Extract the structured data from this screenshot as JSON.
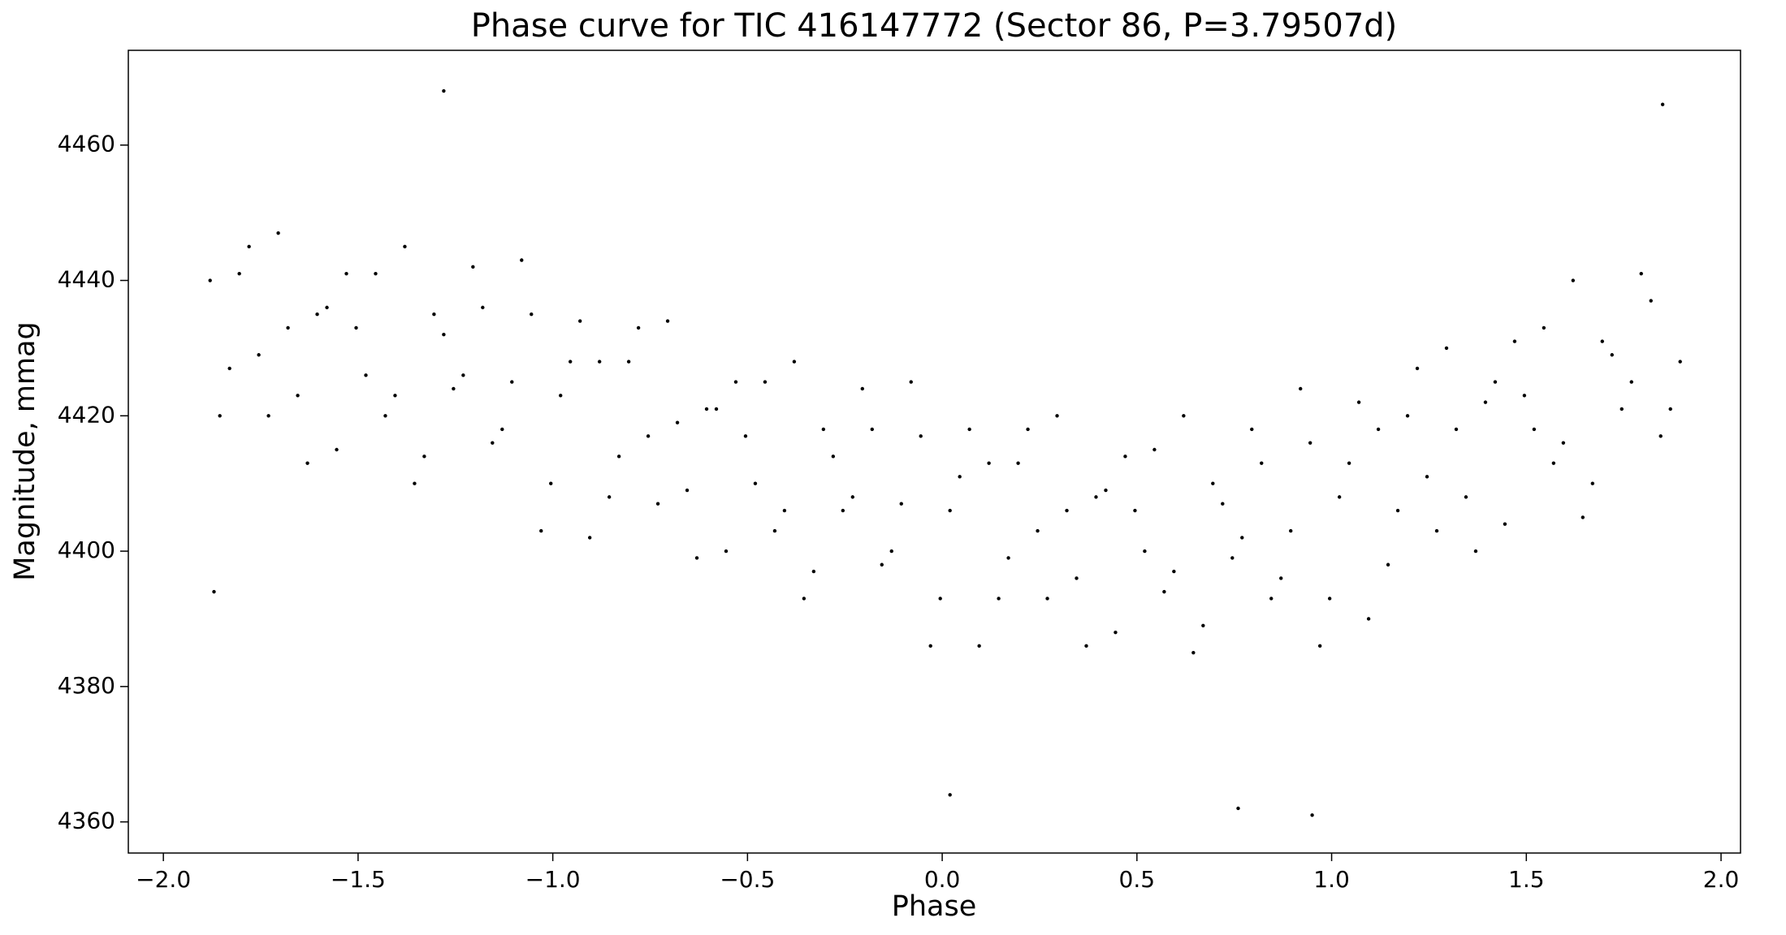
{
  "chart_data": {
    "type": "scatter",
    "title": "Phase curve for TIC 416147772 (Sector 86, P=3.79507d)",
    "xlabel": "Phase",
    "ylabel": "Magnitude, mmag",
    "color": "#000000",
    "xlim": [
      -2.09,
      2.05
    ],
    "ylim": [
      4355.4,
      4474.0
    ],
    "xticks": [
      {
        "value": -2.0,
        "label": "−2.0"
      },
      {
        "value": -1.5,
        "label": "−1.5"
      },
      {
        "value": -1.0,
        "label": "−1.0"
      },
      {
        "value": -0.5,
        "label": "−0.5"
      },
      {
        "value": 0,
        "label": "0.0"
      },
      0.5,
      {
        "value": 1,
        "label": "1.0"
      },
      1.5,
      {
        "value": 2,
        "label": "2.0"
      }
    ],
    "yticks": [
      4360,
      4380,
      4400,
      4420,
      4440,
      4460
    ],
    "x": [
      -1.88,
      -1.83,
      -1.78,
      -1.73,
      -1.68,
      -1.63,
      -1.58,
      -1.53,
      -1.48,
      -1.43,
      -1.38,
      -1.33,
      -1.28,
      -1.23,
      -1.18,
      -1.13,
      -1.08,
      -1.03,
      -0.98,
      -0.93,
      -0.88,
      -0.83,
      -0.78,
      -0.73,
      -0.68,
      -0.63,
      -0.58,
      -0.53,
      -0.48,
      -0.43,
      -0.38,
      -0.33,
      -0.28,
      -0.23,
      -0.18,
      -0.13,
      -0.08,
      -0.03,
      0.02,
      0.07,
      0.12,
      0.17,
      0.22,
      0.27,
      0.32,
      0.37,
      0.42,
      0.47,
      0.52,
      0.57,
      0.62,
      0.67,
      0.72,
      0.77,
      0.82,
      0.87,
      0.92,
      0.97,
      1.02,
      1.07,
      1.12,
      1.17,
      1.22,
      1.27,
      1.32,
      1.37,
      1.42,
      1.47,
      1.52,
      1.57,
      1.62,
      1.67,
      1.72,
      1.77,
      1.82,
      1.87,
      -1.855,
      -1.805,
      -1.755,
      -1.705,
      -1.655,
      -1.605,
      -1.555,
      -1.505,
      -1.455,
      -1.405,
      -1.355,
      -1.305,
      -1.255,
      -1.205,
      -1.155,
      -1.105,
      -1.055,
      -1.005,
      -0.955,
      -0.905,
      -0.855,
      -0.805,
      -0.755,
      -0.705,
      -0.655,
      -0.605,
      -0.555,
      -0.505,
      -0.455,
      -0.405,
      -0.355,
      -0.305,
      -0.255,
      -0.205,
      -0.155,
      -0.105,
      -0.055,
      -0.005,
      0.045,
      0.095,
      0.145,
      0.195,
      0.245,
      0.295,
      0.345,
      0.395,
      0.445,
      0.495,
      0.545,
      0.595,
      0.645,
      0.695,
      0.745,
      0.795,
      0.845,
      0.895,
      0.945,
      0.995,
      1.045,
      1.095,
      1.145,
      1.195,
      1.245,
      1.295,
      1.345,
      1.395,
      1.445,
      1.495,
      1.545,
      1.595,
      1.645,
      1.695,
      1.745,
      1.795,
      1.845,
      1.895,
      -1.28,
      0.02,
      0.95,
      1.85,
      -1.87,
      0.76
    ],
    "y": [
      4440,
      4427,
      4445,
      4420,
      4433,
      4413,
      4436,
      4441,
      4426,
      4420,
      4445,
      4414,
      4432,
      4426,
      4436,
      4418,
      4443,
      4403,
      4423,
      4434,
      4428,
      4414,
      4433,
      4407,
      4419,
      4399,
      4421,
      4425,
      4410,
      4403,
      4428,
      4397,
      4414,
      4408,
      4418,
      4400,
      4425,
      4386,
      4406,
      4418,
      4413,
      4399,
      4418,
      4393,
      4406,
      4386,
      4409,
      4414,
      4400,
      4394,
      4420,
      4389,
      4407,
      4402,
      4413,
      4396,
      4424,
      4386,
      4408,
      4422,
      4418,
      4406,
      4427,
      4403,
      4418,
      4400,
      4425,
      4431,
      4418,
      4413,
      4440,
      4410,
      4429,
      4425,
      4437,
      4421,
      4420,
      4441,
      4429,
      4447,
      4423,
      4435,
      4415,
      4433,
      4441,
      4423,
      4410,
      4435,
      4424,
      4442,
      4416,
      4425,
      4435,
      4410,
      4428,
      4402,
      4408,
      4428,
      4417,
      4434,
      4409,
      4421,
      4400,
      4417,
      4425,
      4406,
      4393,
      4418,
      4406,
      4424,
      4398,
      4407,
      4417,
      4393,
      4411,
      4386,
      4393,
      4413,
      4403,
      4420,
      4396,
      4408,
      4388,
      4406,
      4415,
      4397,
      4385,
      4410,
      4399,
      4418,
      4393,
      4403,
      4416,
      4393,
      4413,
      4390,
      4398,
      4420,
      4411,
      4430,
      4408,
      4422,
      4404,
      4423,
      4433,
      4416,
      4405,
      4431,
      4421,
      4441,
      4417,
      4428,
      4468,
      4364,
      4361,
      4466,
      4394,
      4362
    ]
  }
}
